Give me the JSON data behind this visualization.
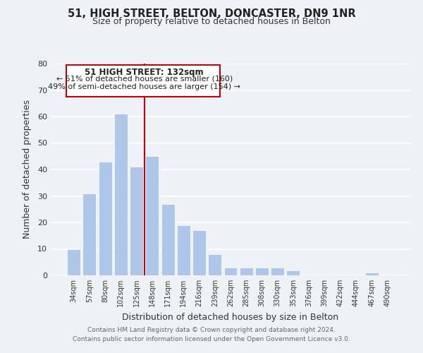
{
  "title": "51, HIGH STREET, BELTON, DONCASTER, DN9 1NR",
  "subtitle": "Size of property relative to detached houses in Belton",
  "xlabel": "Distribution of detached houses by size in Belton",
  "ylabel": "Number of detached properties",
  "bar_labels": [
    "34sqm",
    "57sqm",
    "80sqm",
    "102sqm",
    "125sqm",
    "148sqm",
    "171sqm",
    "194sqm",
    "216sqm",
    "239sqm",
    "262sqm",
    "285sqm",
    "308sqm",
    "330sqm",
    "353sqm",
    "376sqm",
    "399sqm",
    "422sqm",
    "444sqm",
    "467sqm",
    "490sqm"
  ],
  "bar_values": [
    10,
    31,
    43,
    61,
    41,
    45,
    27,
    19,
    17,
    8,
    3,
    3,
    3,
    3,
    2,
    0,
    0,
    0,
    0,
    1,
    0
  ],
  "bar_color": "#aec6e8",
  "bar_edge_color": "#ffffff",
  "vline_x": 4.5,
  "vline_color": "#cc0000",
  "annotation_title": "51 HIGH STREET: 132sqm",
  "annotation_line1": "← 51% of detached houses are smaller (160)",
  "annotation_line2": "49% of semi-detached houses are larger (154) →",
  "annotation_box_facecolor": "#ffffff",
  "annotation_box_edgecolor": "#cc0000",
  "ylim": [
    0,
    80
  ],
  "yticks": [
    0,
    10,
    20,
    30,
    40,
    50,
    60,
    70,
    80
  ],
  "footer1": "Contains HM Land Registry data © Crown copyright and database right 2024.",
  "footer2": "Contains public sector information licensed under the Open Government Licence v3.0.",
  "bg_color": "#eef2f7",
  "grid_color": "#ffffff",
  "plot_bg_color": "#eef2f7"
}
